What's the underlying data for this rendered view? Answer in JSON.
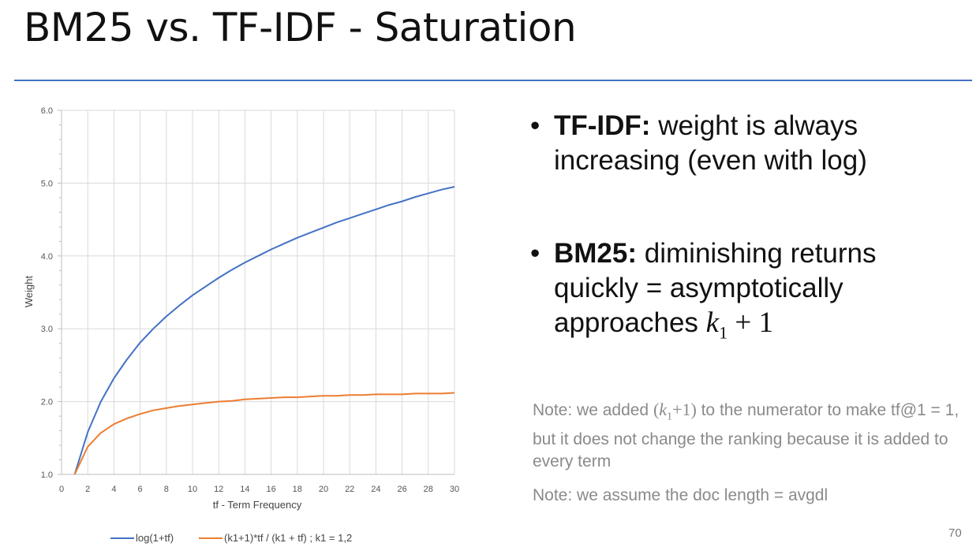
{
  "slide": {
    "title": "BM25 vs. TF-IDF - Saturation",
    "accent_color": "#4472c4",
    "page_number": "70"
  },
  "bullets": [
    {
      "label": "TF-IDF:",
      "text_line1": "weight is always",
      "text_line2": "increasing (even with log)"
    },
    {
      "label": "BM25:",
      "text_line1": "diminishing returns",
      "text_line2": "quickly = asymptotically",
      "text_line3": "approaches",
      "formula_var": "k",
      "formula_sub": "1",
      "formula_rest": " + 1"
    }
  ],
  "notes": {
    "note1_before": "Note: we added ",
    "note1_formula_open": "(",
    "note1_formula_var": "k",
    "note1_formula_sub": "1",
    "note1_formula_close": "+1)",
    "note1_after": " to the numerator to make tf@1 = 1, but it does not change the ranking because it is added to every term",
    "note2": "Note: we assume the doc length = avgdl"
  },
  "chart_data": {
    "type": "line",
    "xlabel": "tf - Term Frequency",
    "ylabel": "Weight",
    "xlim": [
      0,
      30
    ],
    "ylim": [
      1.0,
      6.0
    ],
    "x_ticks": [
      "0",
      "2",
      "4",
      "6",
      "8",
      "10",
      "12",
      "14",
      "16",
      "18",
      "20",
      "22",
      "24",
      "26",
      "28",
      "30"
    ],
    "y_ticks": [
      "1.0",
      "2.0",
      "3.0",
      "4.0",
      "5.0",
      "6.0"
    ],
    "grid": true,
    "legend_position": "bottom",
    "x": [
      1,
      2,
      3,
      4,
      5,
      6,
      7,
      8,
      9,
      10,
      11,
      12,
      13,
      14,
      15,
      16,
      17,
      18,
      19,
      20,
      21,
      22,
      23,
      24,
      25,
      26,
      27,
      28,
      29,
      30
    ],
    "series": [
      {
        "name": "log(1+tf)",
        "color": "#4472c4",
        "values": [
          1.0,
          1.58,
          2.0,
          2.32,
          2.58,
          2.81,
          3.0,
          3.17,
          3.32,
          3.46,
          3.58,
          3.7,
          3.81,
          3.91,
          4.0,
          4.09,
          4.17,
          4.25,
          4.32,
          4.39,
          4.46,
          4.52,
          4.58,
          4.64,
          4.7,
          4.75,
          4.81,
          4.86,
          4.91,
          4.95
        ]
      },
      {
        "name": "(k1+1)*tf / (k1 + tf) ; k1 = 1,2",
        "color": "#ed7d31",
        "values": [
          1.0,
          1.38,
          1.57,
          1.69,
          1.77,
          1.83,
          1.88,
          1.91,
          1.94,
          1.96,
          1.98,
          2.0,
          2.01,
          2.03,
          2.04,
          2.05,
          2.06,
          2.06,
          2.07,
          2.08,
          2.08,
          2.09,
          2.09,
          2.1,
          2.1,
          2.1,
          2.11,
          2.11,
          2.11,
          2.12
        ]
      }
    ]
  }
}
